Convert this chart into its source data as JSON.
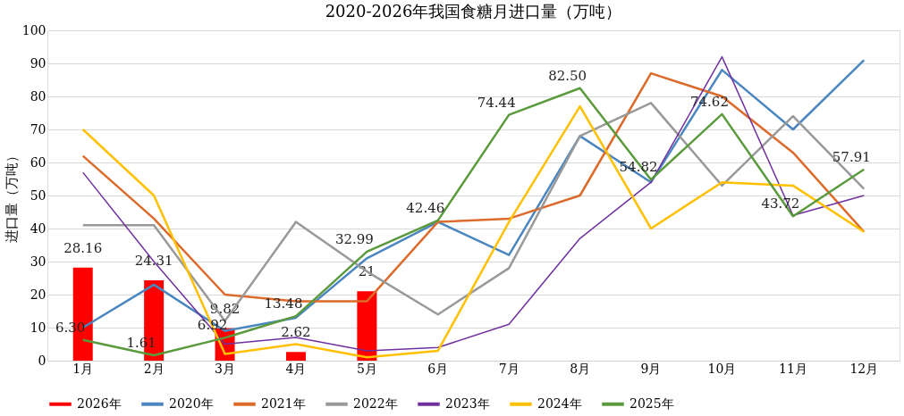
{
  "chart_data": {
    "type": "line",
    "title": "2020-2026年我国食糖月进口量（万吨）",
    "ylabel": "进口量（万吨）",
    "categories": [
      "1月",
      "2月",
      "3月",
      "4月",
      "5月",
      "6月",
      "7月",
      "8月",
      "9月",
      "10月",
      "11月",
      "12月"
    ],
    "ylim": [
      0,
      100
    ],
    "yticks": [
      0,
      10,
      20,
      30,
      40,
      50,
      60,
      70,
      80,
      90,
      100
    ],
    "grid": "y",
    "legend": "bottom",
    "marker": "none",
    "line_style": "solid",
    "series": [
      {
        "name": "2026年",
        "type": "bar",
        "color": "#ff0000",
        "values": [
          28.16,
          24.31,
          9.82,
          2.62,
          21,
          null,
          null,
          null,
          null,
          null,
          null,
          null
        ],
        "value_labels": [
          "28.16",
          "24.31",
          "9.82",
          "2.62",
          "21",
          null,
          null,
          null,
          null,
          null,
          null,
          null
        ]
      },
      {
        "name": "2020年",
        "color": "#4a86c0",
        "values": [
          10,
          23,
          9,
          13,
          31,
          42,
          32,
          68,
          54,
          88,
          70,
          91
        ]
      },
      {
        "name": "2021年",
        "color": "#dc6a2a",
        "values": [
          62,
          43,
          20,
          18,
          18,
          42,
          43,
          50,
          87,
          80,
          63,
          39
        ]
      },
      {
        "name": "2022年",
        "color": "#999999",
        "values": [
          41,
          41,
          12,
          42,
          27,
          14,
          28,
          68,
          78,
          53,
          74,
          52
        ]
      },
      {
        "name": "2023年",
        "color": "#7030a0",
        "values": [
          57,
          30,
          5,
          7,
          3,
          4,
          11,
          37,
          54,
          92,
          44,
          50
        ]
      },
      {
        "name": "2024年",
        "color": "#ffc000",
        "values": [
          70,
          50,
          2,
          5,
          1,
          3,
          42,
          77,
          40,
          54,
          53,
          39
        ]
      },
      {
        "name": "2025年",
        "color": "#5a9a3c",
        "values": [
          6.3,
          1.61,
          6.92,
          13.48,
          32.99,
          42.46,
          74.44,
          82.5,
          54.82,
          74.62,
          43.72,
          57.91
        ],
        "value_labels": [
          "6.30",
          "1.61",
          "6.92",
          "13.48",
          "32.99",
          "42.46",
          "74.44",
          "82.50",
          "54.82",
          "74.62",
          "43.72",
          "57.91"
        ]
      }
    ]
  }
}
